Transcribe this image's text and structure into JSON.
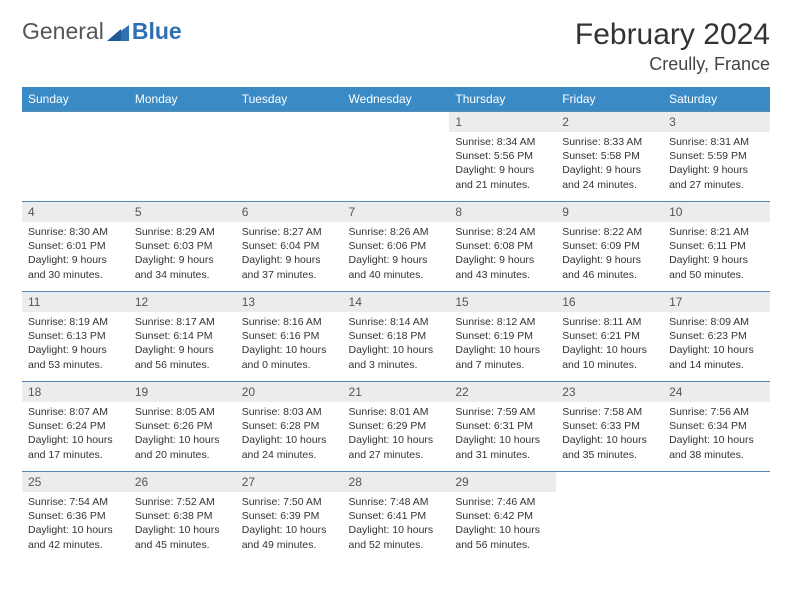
{
  "brand": {
    "general": "General",
    "blue": "Blue"
  },
  "title": "February 2024",
  "location": "Creully, France",
  "colors": {
    "header_bg": "#3a8ac6",
    "row_border": "#5a8ab5",
    "daynum_bg": "#ececec",
    "brand_blue": "#2f6fb3"
  },
  "daysOfWeek": [
    "Sunday",
    "Monday",
    "Tuesday",
    "Wednesday",
    "Thursday",
    "Friday",
    "Saturday"
  ],
  "startOffset": 4,
  "days": [
    {
      "n": 1,
      "sunrise": "8:34 AM",
      "sunset": "5:56 PM",
      "daylight": "9 hours and 21 minutes."
    },
    {
      "n": 2,
      "sunrise": "8:33 AM",
      "sunset": "5:58 PM",
      "daylight": "9 hours and 24 minutes."
    },
    {
      "n": 3,
      "sunrise": "8:31 AM",
      "sunset": "5:59 PM",
      "daylight": "9 hours and 27 minutes."
    },
    {
      "n": 4,
      "sunrise": "8:30 AM",
      "sunset": "6:01 PM",
      "daylight": "9 hours and 30 minutes."
    },
    {
      "n": 5,
      "sunrise": "8:29 AM",
      "sunset": "6:03 PM",
      "daylight": "9 hours and 34 minutes."
    },
    {
      "n": 6,
      "sunrise": "8:27 AM",
      "sunset": "6:04 PM",
      "daylight": "9 hours and 37 minutes."
    },
    {
      "n": 7,
      "sunrise": "8:26 AM",
      "sunset": "6:06 PM",
      "daylight": "9 hours and 40 minutes."
    },
    {
      "n": 8,
      "sunrise": "8:24 AM",
      "sunset": "6:08 PM",
      "daylight": "9 hours and 43 minutes."
    },
    {
      "n": 9,
      "sunrise": "8:22 AM",
      "sunset": "6:09 PM",
      "daylight": "9 hours and 46 minutes."
    },
    {
      "n": 10,
      "sunrise": "8:21 AM",
      "sunset": "6:11 PM",
      "daylight": "9 hours and 50 minutes."
    },
    {
      "n": 11,
      "sunrise": "8:19 AM",
      "sunset": "6:13 PM",
      "daylight": "9 hours and 53 minutes."
    },
    {
      "n": 12,
      "sunrise": "8:17 AM",
      "sunset": "6:14 PM",
      "daylight": "9 hours and 56 minutes."
    },
    {
      "n": 13,
      "sunrise": "8:16 AM",
      "sunset": "6:16 PM",
      "daylight": "10 hours and 0 minutes."
    },
    {
      "n": 14,
      "sunrise": "8:14 AM",
      "sunset": "6:18 PM",
      "daylight": "10 hours and 3 minutes."
    },
    {
      "n": 15,
      "sunrise": "8:12 AM",
      "sunset": "6:19 PM",
      "daylight": "10 hours and 7 minutes."
    },
    {
      "n": 16,
      "sunrise": "8:11 AM",
      "sunset": "6:21 PM",
      "daylight": "10 hours and 10 minutes."
    },
    {
      "n": 17,
      "sunrise": "8:09 AM",
      "sunset": "6:23 PM",
      "daylight": "10 hours and 14 minutes."
    },
    {
      "n": 18,
      "sunrise": "8:07 AM",
      "sunset": "6:24 PM",
      "daylight": "10 hours and 17 minutes."
    },
    {
      "n": 19,
      "sunrise": "8:05 AM",
      "sunset": "6:26 PM",
      "daylight": "10 hours and 20 minutes."
    },
    {
      "n": 20,
      "sunrise": "8:03 AM",
      "sunset": "6:28 PM",
      "daylight": "10 hours and 24 minutes."
    },
    {
      "n": 21,
      "sunrise": "8:01 AM",
      "sunset": "6:29 PM",
      "daylight": "10 hours and 27 minutes."
    },
    {
      "n": 22,
      "sunrise": "7:59 AM",
      "sunset": "6:31 PM",
      "daylight": "10 hours and 31 minutes."
    },
    {
      "n": 23,
      "sunrise": "7:58 AM",
      "sunset": "6:33 PM",
      "daylight": "10 hours and 35 minutes."
    },
    {
      "n": 24,
      "sunrise": "7:56 AM",
      "sunset": "6:34 PM",
      "daylight": "10 hours and 38 minutes."
    },
    {
      "n": 25,
      "sunrise": "7:54 AM",
      "sunset": "6:36 PM",
      "daylight": "10 hours and 42 minutes."
    },
    {
      "n": 26,
      "sunrise": "7:52 AM",
      "sunset": "6:38 PM",
      "daylight": "10 hours and 45 minutes."
    },
    {
      "n": 27,
      "sunrise": "7:50 AM",
      "sunset": "6:39 PM",
      "daylight": "10 hours and 49 minutes."
    },
    {
      "n": 28,
      "sunrise": "7:48 AM",
      "sunset": "6:41 PM",
      "daylight": "10 hours and 52 minutes."
    },
    {
      "n": 29,
      "sunrise": "7:46 AM",
      "sunset": "6:42 PM",
      "daylight": "10 hours and 56 minutes."
    }
  ],
  "labels": {
    "sunrise": "Sunrise:",
    "sunset": "Sunset:",
    "daylight": "Daylight:"
  }
}
